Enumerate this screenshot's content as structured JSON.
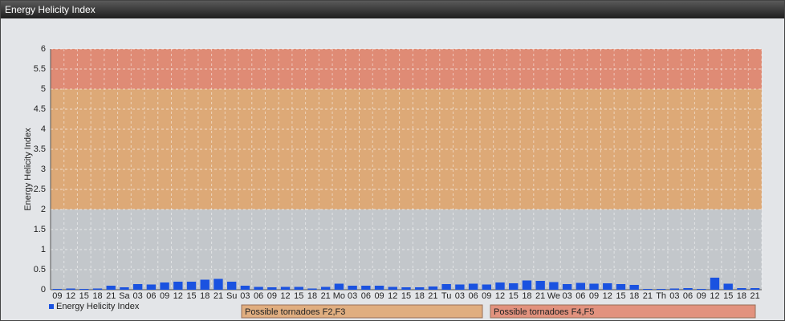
{
  "chart_data": {
    "type": "bar",
    "title": "Energy Helicity Index",
    "ylabel": "Energy Helicity Index",
    "categories": [
      "09",
      "12",
      "15",
      "18",
      "21",
      "Sa",
      "03",
      "06",
      "09",
      "12",
      "15",
      "18",
      "21",
      "Su",
      "03",
      "06",
      "09",
      "12",
      "15",
      "18",
      "21",
      "Mo",
      "03",
      "06",
      "09",
      "12",
      "15",
      "18",
      "21",
      "Tu",
      "03",
      "06",
      "09",
      "12",
      "15",
      "18",
      "21",
      "We",
      "03",
      "06",
      "09",
      "12",
      "15",
      "18",
      "21",
      "Th",
      "03",
      "06",
      "09",
      "12",
      "15",
      "18",
      "21"
    ],
    "series": [
      {
        "name": "Energy Helicity Index",
        "color": "#1a52e0",
        "values": [
          0.02,
          0.03,
          0.02,
          0.03,
          0.1,
          0.06,
          0.14,
          0.13,
          0.18,
          0.2,
          0.2,
          0.25,
          0.27,
          0.2,
          0.1,
          0.07,
          0.06,
          0.07,
          0.07,
          0.03,
          0.07,
          0.15,
          0.1,
          0.1,
          0.1,
          0.07,
          0.06,
          0.06,
          0.08,
          0.14,
          0.13,
          0.15,
          0.13,
          0.18,
          0.16,
          0.23,
          0.22,
          0.19,
          0.14,
          0.17,
          0.15,
          0.16,
          0.14,
          0.12,
          0.02,
          0.02,
          0.03,
          0.04,
          0.02,
          0.3,
          0.15,
          0.04,
          0.04
        ]
      }
    ],
    "ylim": [
      0,
      6
    ],
    "yticks": [
      0,
      0.5,
      1,
      1.5,
      2,
      2.5,
      3,
      3.5,
      4,
      4.5,
      5,
      5.5,
      6
    ],
    "grid": true,
    "bands": [
      {
        "from": 2,
        "to": 5,
        "color": "#e0a56e",
        "label": "Possible tornadoes F2,F3"
      },
      {
        "from": 5,
        "to": 6,
        "color": "#e2846c",
        "label": "Possible tornadoes F4,F5"
      }
    ]
  }
}
